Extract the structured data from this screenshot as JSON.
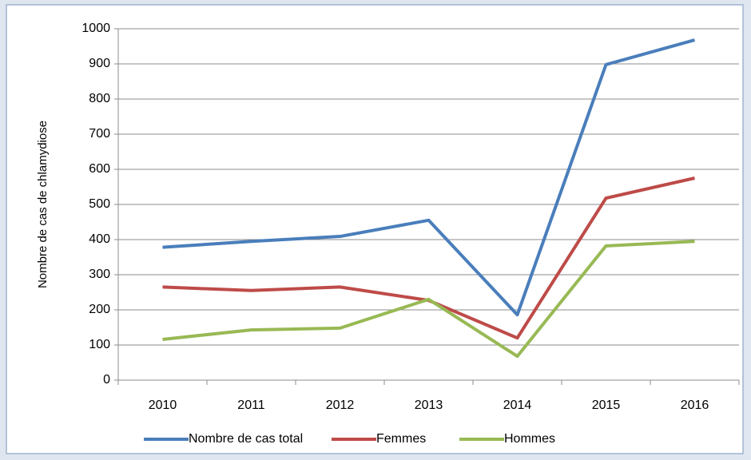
{
  "chart_data": {
    "type": "line",
    "y_label": "Nombre de cas de chlamydiose",
    "categories": [
      "2010",
      "2011",
      "2012",
      "2013",
      "2014",
      "2015",
      "2016"
    ],
    "series": [
      {
        "name": "Nombre de cas total",
        "color": "#4a7ebb",
        "values": [
          378,
          395,
          409,
          455,
          186,
          898,
          968
        ]
      },
      {
        "name": "Femmes",
        "color": "#be4b48",
        "values": [
          265,
          255,
          265,
          227,
          120,
          518,
          575
        ]
      },
      {
        "name": "Hommes",
        "color": "#98b954",
        "values": [
          116,
          143,
          148,
          230,
          68,
          382,
          395
        ]
      }
    ],
    "ylim": [
      0,
      1000
    ],
    "yticks": [
      0,
      100,
      200,
      300,
      400,
      500,
      600,
      700,
      800,
      900,
      1000
    ],
    "grid": true,
    "legend": "bottom"
  }
}
